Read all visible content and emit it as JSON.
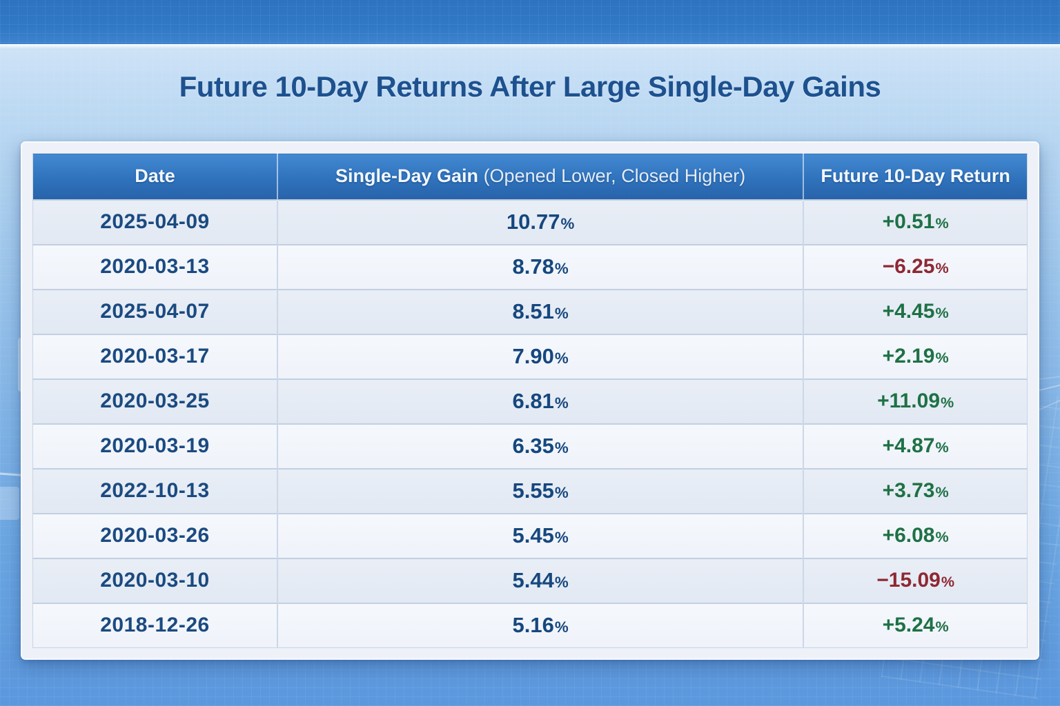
{
  "page": {
    "title": "Future 10-Day Returns After Large Single-Day Gains"
  },
  "percent_symbol": "%",
  "table": {
    "header": {
      "date": "Date",
      "gain_main": "Single-Day Gain",
      "gain_sub": "(Opened Lower, Closed Higher)",
      "ret": "Future 10-Day Return"
    },
    "rows": [
      {
        "date": "2025-04-09",
        "gain": "10.77",
        "ret": "+0.51",
        "dir": "pos"
      },
      {
        "date": "2020-03-13",
        "gain": "8.78",
        "ret": "−6.25",
        "dir": "neg"
      },
      {
        "date": "2025-04-07",
        "gain": "8.51",
        "ret": "+4.45",
        "dir": "pos"
      },
      {
        "date": "2020-03-17",
        "gain": "7.90",
        "ret": "+2.19",
        "dir": "pos"
      },
      {
        "date": "2020-03-25",
        "gain": "6.81",
        "ret": "+11.09",
        "dir": "pos"
      },
      {
        "date": "2020-03-19",
        "gain": "6.35",
        "ret": "+4.87",
        "dir": "pos"
      },
      {
        "date": "2022-10-13",
        "gain": "5.55",
        "ret": "+3.73",
        "dir": "pos"
      },
      {
        "date": "2020-03-26",
        "gain": "5.45",
        "ret": "+6.08",
        "dir": "pos"
      },
      {
        "date": "2020-03-10",
        "gain": "5.44",
        "ret": "−15.09",
        "dir": "neg"
      },
      {
        "date": "2018-12-26",
        "gain": "5.16",
        "ret": "+5.24",
        "dir": "pos"
      }
    ]
  },
  "colors": {
    "positive": "#1e7145",
    "negative": "#8e2833",
    "navy_text": "#16477e",
    "title_text": "#1d518f",
    "header_top": "#4389d2",
    "header_bottom": "#2763a9",
    "band_blue": "#3078c5"
  },
  "chart_data": {
    "type": "table",
    "title": "Future 10-Day Returns After Large Single-Day Gains",
    "columns": [
      "Date",
      "Single-Day Gain (Opened Lower, Closed Higher)",
      "Future 10-Day Return"
    ],
    "rows": [
      [
        "2025-04-09",
        "10.77%",
        "+0.51%"
      ],
      [
        "2020-03-13",
        "8.78%",
        "−6.25%"
      ],
      [
        "2025-04-07",
        "8.51%",
        "+4.45%"
      ],
      [
        "2020-03-17",
        "7.90%",
        "+2.19%"
      ],
      [
        "2020-03-25",
        "6.81%",
        "+11.09%"
      ],
      [
        "2020-03-19",
        "6.35%",
        "+4.87%"
      ],
      [
        "2022-10-13",
        "5.55%",
        "+3.73%"
      ],
      [
        "2020-03-26",
        "5.45%",
        "+6.08%"
      ],
      [
        "2020-03-10",
        "5.44%",
        "−15.09%"
      ],
      [
        "2018-12-26",
        "5.16%",
        "+5.24%"
      ]
    ],
    "gain_values_pct": [
      10.77,
      8.78,
      8.51,
      7.9,
      6.81,
      6.35,
      5.55,
      5.45,
      5.44,
      5.16
    ],
    "future_return_values_pct": [
      0.51,
      -6.25,
      4.45,
      2.19,
      11.09,
      4.87,
      3.73,
      6.08,
      -15.09,
      5.24
    ]
  }
}
